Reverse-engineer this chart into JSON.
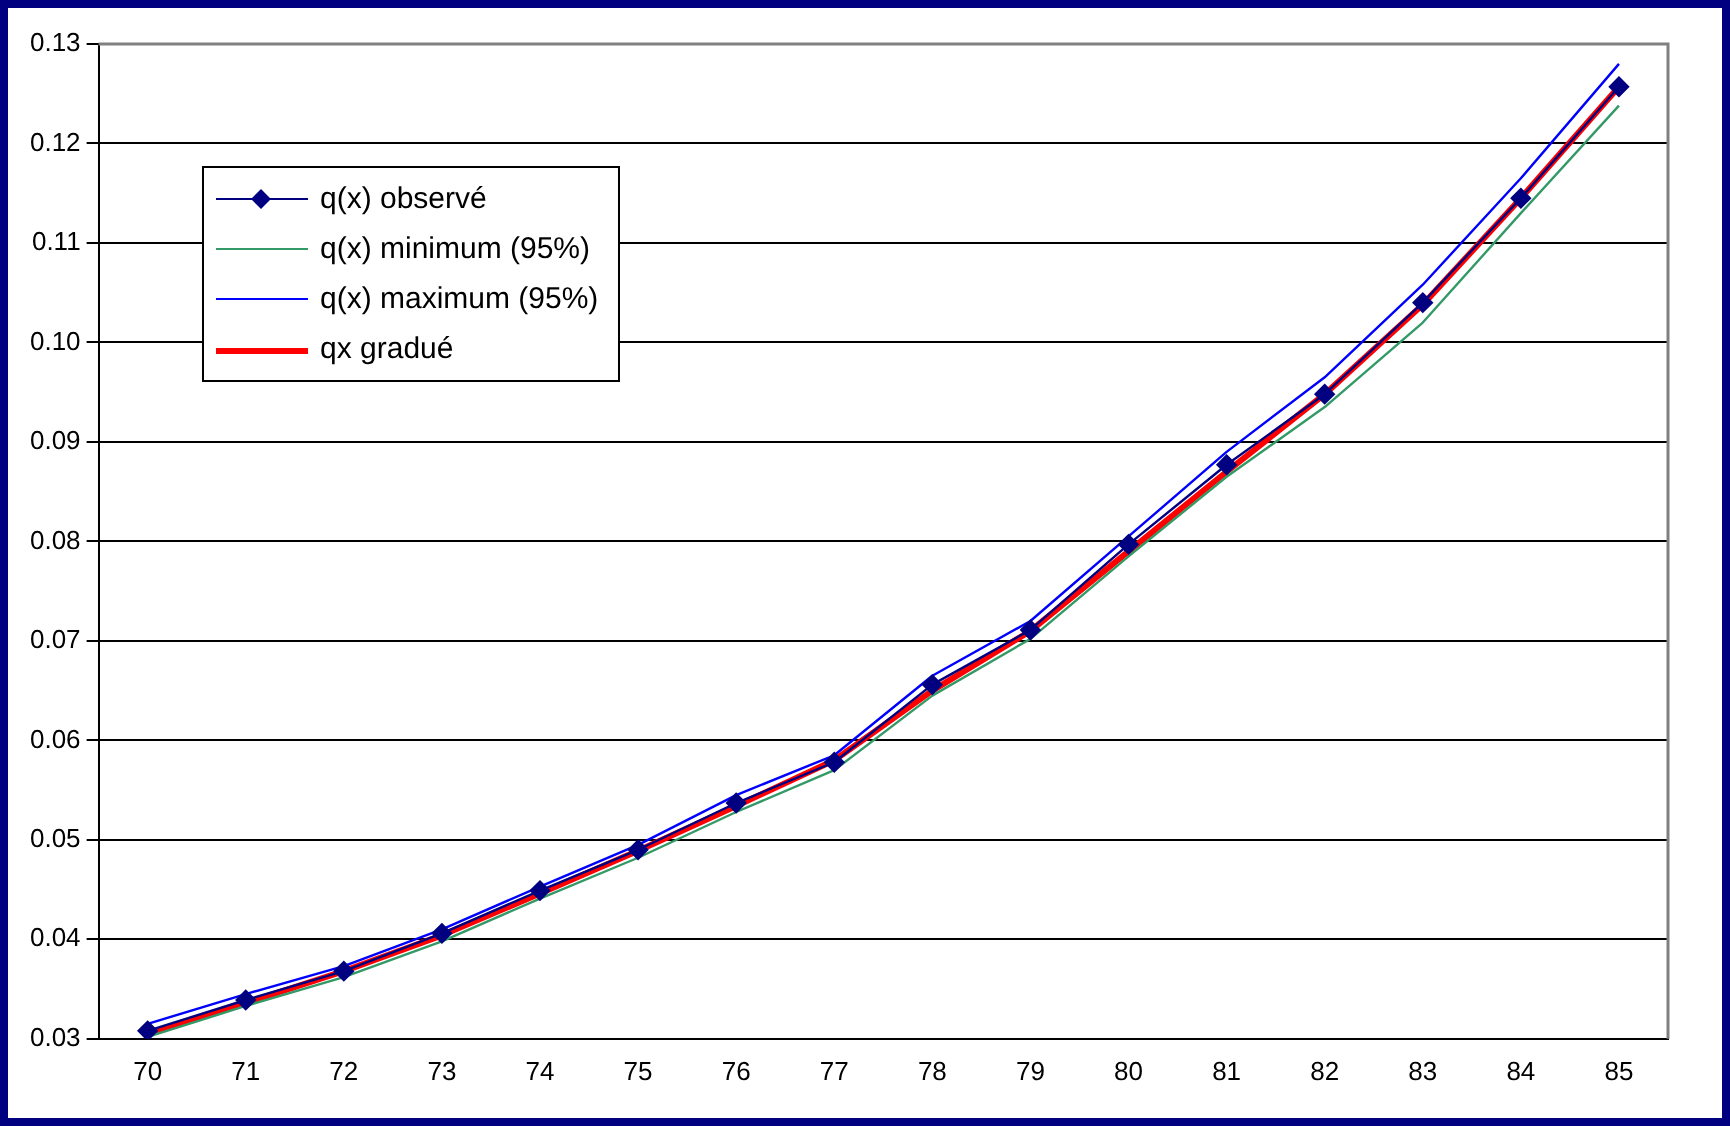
{
  "chart_data": {
    "type": "line",
    "categories": [
      "70",
      "71",
      "72",
      "73",
      "74",
      "75",
      "76",
      "77",
      "78",
      "79",
      "80",
      "81",
      "82",
      "83",
      "84",
      "85"
    ],
    "ylim": [
      0.03,
      0.13
    ],
    "yticks": [
      0.03,
      0.04,
      0.05,
      0.06,
      0.07,
      0.08,
      0.09,
      {
        "value": 0.1,
        "label": "0.10"
      },
      0.11,
      0.12,
      0.13
    ],
    "grid": "y",
    "legend": "top left",
    "series": [
      {
        "name": "q(x) observé",
        "color": "#000080",
        "marker": "diamond",
        "values": [
          0.0308,
          0.0339,
          0.0368,
          0.0406,
          0.0449,
          0.049,
          0.0537,
          0.0578,
          0.0656,
          0.0711,
          0.0797,
          0.0877,
          0.0948,
          0.104,
          0.1145,
          0.1257
        ]
      },
      {
        "name": "q(x) minimum (95%)",
        "color": "#339966",
        "marker": "none",
        "values": [
          0.0302,
          0.0333,
          0.0362,
          0.0398,
          0.0441,
          0.0482,
          0.0528,
          0.057,
          0.0645,
          0.0702,
          0.0785,
          0.0865,
          0.0935,
          0.102,
          0.113,
          0.1238
        ]
      },
      {
        "name": "q(x) maximum (95%)",
        "color": "#0000ff",
        "marker": "none",
        "values": [
          0.0315,
          0.0345,
          0.0373,
          0.041,
          0.0453,
          0.0495,
          0.0545,
          0.0585,
          0.0665,
          0.072,
          0.0805,
          0.089,
          0.0965,
          0.1058,
          0.1165,
          0.128
        ]
      },
      {
        "name": "qx gradué",
        "color": "#ff0000",
        "marker": "none",
        "values": [
          0.0305,
          0.0336,
          0.0368,
          0.0404,
          0.0446,
          0.0489,
          0.0534,
          0.058,
          0.065,
          0.071,
          0.079,
          0.087,
          0.0948,
          0.1038,
          0.1145,
          0.1257
        ]
      }
    ]
  }
}
